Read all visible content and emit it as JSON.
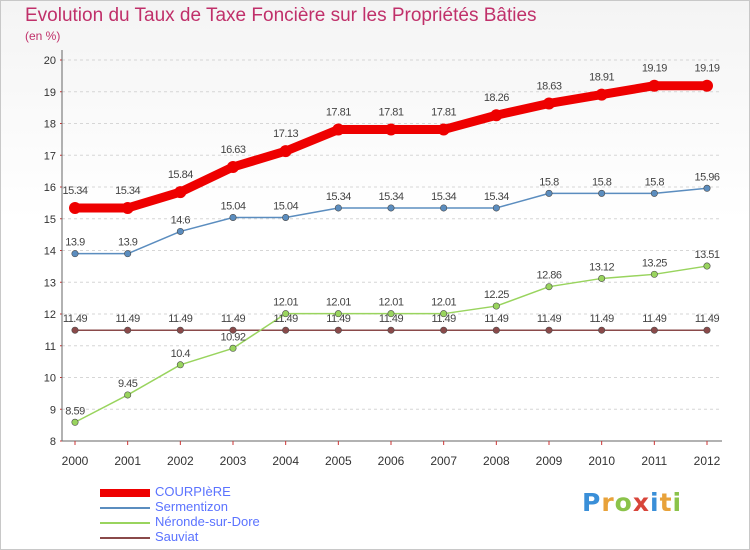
{
  "header": {
    "title": "Evolution du Taux de Taxe Foncière sur les Propriétés Bâties",
    "unit": "(en %)"
  },
  "brand": {
    "letters": [
      "P",
      "r",
      "o",
      "x",
      "i",
      "t",
      "i"
    ],
    "colors": [
      "#3a8fd8",
      "#e8a23a",
      "#8bc34a",
      "#d8453a",
      "#3a8fd8",
      "#e8a23a",
      "#8bc34a"
    ]
  },
  "chart_data": {
    "type": "line",
    "categories": [
      "2000",
      "2001",
      "2002",
      "2003",
      "2004",
      "2005",
      "2006",
      "2007",
      "2008",
      "2009",
      "2010",
      "2011",
      "2012"
    ],
    "ylim": [
      8,
      20
    ],
    "yticks": [
      8,
      9,
      10,
      11,
      12,
      13,
      14,
      15,
      16,
      17,
      18,
      19,
      20
    ],
    "grid": "horizontal dashed",
    "legend": "bottom-left",
    "series": [
      {
        "name": "COURPIèRE",
        "color": "#ee0000",
        "values": [
          15.34,
          15.34,
          15.84,
          16.63,
          17.13,
          17.81,
          17.81,
          17.81,
          18.26,
          18.63,
          18.91,
          19.19,
          19.19
        ],
        "labels": [
          "15.34",
          "15.34",
          "15.84",
          "16.63",
          "17.13",
          "17.81",
          "17.81",
          "17.81",
          "18.26",
          "18.63",
          "18.91",
          "19.19",
          "19.19"
        ]
      },
      {
        "name": "Sermentizon",
        "color": "#5b8dbf",
        "values": [
          13.9,
          13.9,
          14.6,
          15.04,
          15.04,
          15.34,
          15.34,
          15.34,
          15.34,
          15.8,
          15.8,
          15.8,
          15.96
        ],
        "labels": [
          "13.9",
          "13.9",
          "14.6",
          "15.04",
          "15.04",
          "15.34",
          "15.34",
          "15.34",
          "15.34",
          "15.8",
          "15.8",
          "15.8",
          "15.96"
        ]
      },
      {
        "name": "Néronde-sur-Dore",
        "color": "#99d45e",
        "values": [
          8.59,
          9.45,
          10.4,
          10.92,
          12.01,
          12.01,
          12.01,
          12.01,
          12.25,
          12.86,
          13.12,
          13.25,
          13.51
        ],
        "labels": [
          "8.59",
          "9.45",
          "10.4",
          "10.92",
          "12.01",
          "12.01",
          "12.01",
          "12.01",
          "12.25",
          "12.86",
          "13.12",
          "13.25",
          "13.51"
        ]
      },
      {
        "name": "Sauviat",
        "color": "#8a4a4a",
        "values": [
          11.49,
          11.49,
          11.49,
          11.49,
          11.49,
          11.49,
          11.49,
          11.49,
          11.49,
          11.49,
          11.49,
          11.49,
          11.49
        ],
        "labels": [
          "11.49",
          "11.49",
          "11.49",
          "11.49",
          "11.49",
          "11.49",
          "11.49",
          "11.49",
          "11.49",
          "11.49",
          "11.49",
          "11.49",
          "11.49"
        ]
      }
    ]
  }
}
